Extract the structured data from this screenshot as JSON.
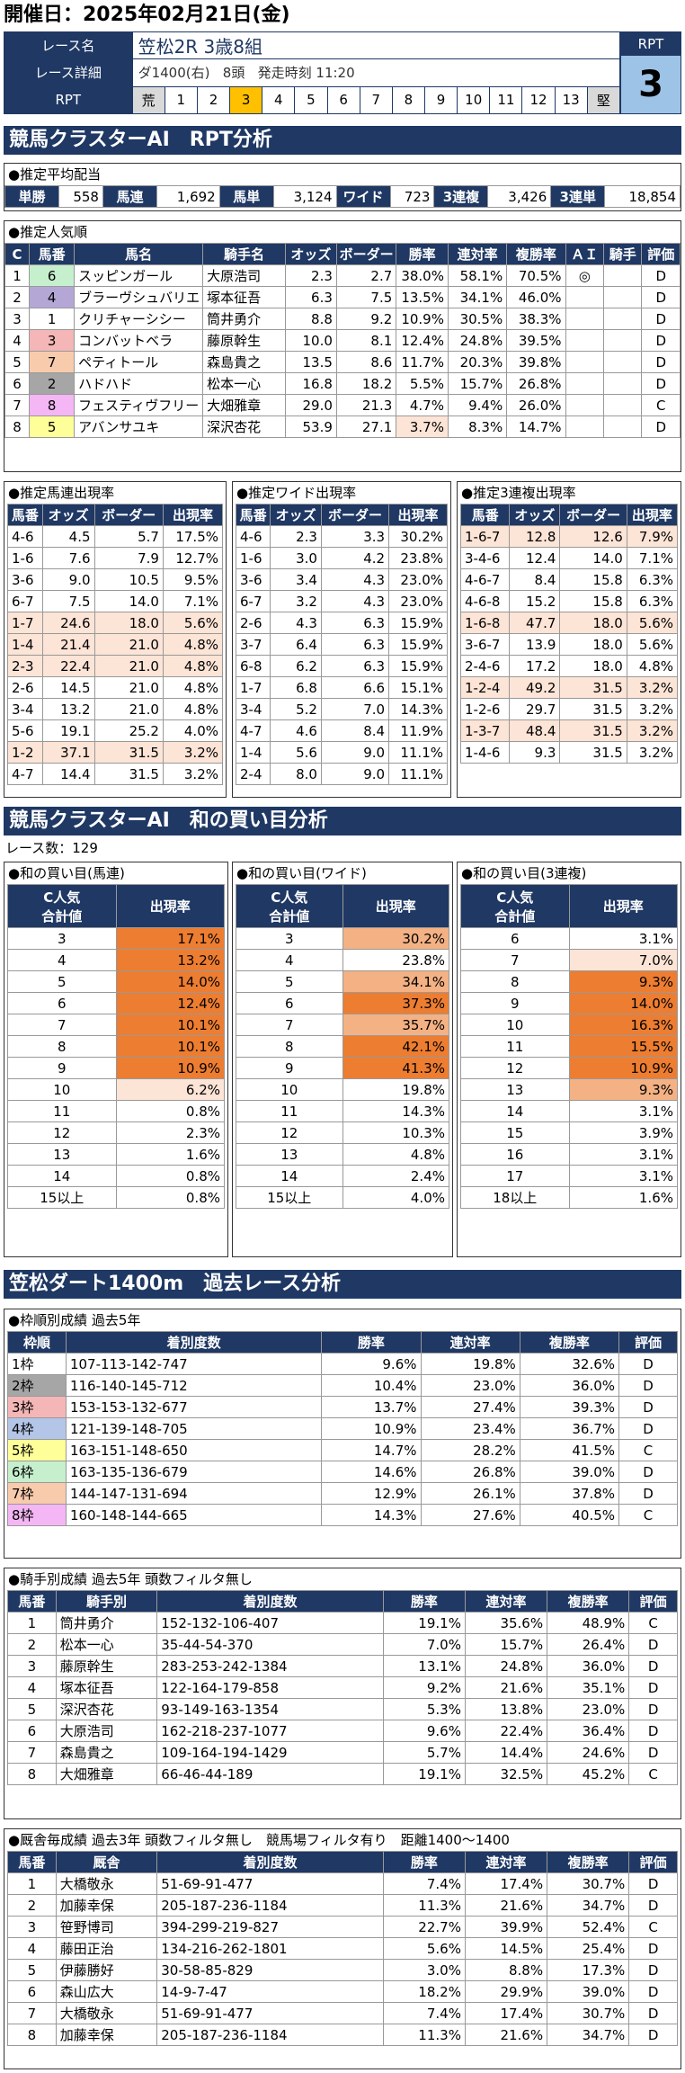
{
  "header": {
    "date_label": "開催日：2025年02月21日(金)",
    "race_label": "レース名",
    "race_name": "笠松2R 3歳8組",
    "detail_label": "レース詳細",
    "course": "ダ1400(右)",
    "heads": "8頭",
    "start": "発走時刻 11:20",
    "rpt_label": "RPT",
    "rpt_value": "3",
    "scale": [
      "荒",
      "1",
      "2",
      "3",
      "4",
      "5",
      "6",
      "7",
      "8",
      "9",
      "10",
      "11",
      "12",
      "13",
      "堅"
    ],
    "scale_active": 3
  },
  "colors": {
    "navy": "#1f3864",
    "highlight": "#f4b183",
    "orange": "#ed7d31",
    "pink": "#fce4d6"
  },
  "sec1": {
    "title": "競馬クラスターAI　RPT分析"
  },
  "payout": {
    "title": "●推定平均配当",
    "items": [
      {
        "k": "単勝",
        "v": "558"
      },
      {
        "k": "馬連",
        "v": "1,692"
      },
      {
        "k": "馬単",
        "v": "3,124"
      },
      {
        "k": "ワイド",
        "v": "723"
      },
      {
        "k": "3連複",
        "v": "3,426"
      },
      {
        "k": "3連単",
        "v": "18,854"
      }
    ]
  },
  "pop": {
    "title": "●推定人気順",
    "headers": [
      "C",
      "馬番",
      "馬名",
      "騎手名",
      "オッズ",
      "ボーダー",
      "勝率",
      "連対率",
      "複勝率",
      "ＡＩ",
      "騎手",
      "評価"
    ],
    "rows": [
      {
        "c": "1",
        "no": "6",
        "name": "スッピンガール",
        "jockey": "大原浩司",
        "odds": "2.3",
        "border": "2.7",
        "win": "38.0%",
        "ren": "58.1%",
        "fuku": "70.5%",
        "ai": "◎",
        "j": "",
        "ev": "D",
        "color": "#c6efce"
      },
      {
        "c": "2",
        "no": "4",
        "name": "ブラーヴシュバリエ",
        "jockey": "塚本征吾",
        "odds": "6.3",
        "border": "7.5",
        "win": "13.5%",
        "ren": "34.1%",
        "fuku": "46.0%",
        "ai": "",
        "j": "",
        "ev": "D",
        "color": "#b4a7d6"
      },
      {
        "c": "3",
        "no": "1",
        "name": "クリチャーシシー",
        "jockey": "筒井勇介",
        "odds": "8.8",
        "border": "9.2",
        "win": "10.9%",
        "ren": "30.5%",
        "fuku": "38.3%",
        "ai": "",
        "j": "",
        "ev": "D",
        "color": "#ffffff"
      },
      {
        "c": "4",
        "no": "3",
        "name": "コンバットベラ",
        "jockey": "藤原幹生",
        "odds": "10.0",
        "border": "8.1",
        "win": "12.4%",
        "ren": "24.8%",
        "fuku": "39.5%",
        "ai": "",
        "j": "",
        "ev": "D",
        "color": "#f4b6b6"
      },
      {
        "c": "5",
        "no": "7",
        "name": "ペティトール",
        "jockey": "森島貴之",
        "odds": "13.5",
        "border": "8.6",
        "win": "11.7%",
        "ren": "20.3%",
        "fuku": "39.8%",
        "ai": "",
        "j": "",
        "ev": "D",
        "color": "#f8cbad"
      },
      {
        "c": "6",
        "no": "2",
        "name": "ハドハド",
        "jockey": "松本一心",
        "odds": "16.8",
        "border": "18.2",
        "win": "5.5%",
        "ren": "15.7%",
        "fuku": "26.8%",
        "ai": "",
        "j": "",
        "ev": "D",
        "color": "#a6a6a6"
      },
      {
        "c": "7",
        "no": "8",
        "name": "フェスティヴフリー",
        "jockey": "大畑雅章",
        "odds": "29.0",
        "border": "21.3",
        "win": "4.7%",
        "ren": "9.4%",
        "fuku": "26.0%",
        "ai": "",
        "j": "",
        "ev": "C",
        "color": "#f4b6f4"
      },
      {
        "c": "8",
        "no": "5",
        "name": "アバンサユキ",
        "jockey": "深沢杏花",
        "odds": "53.9",
        "border": "27.1",
        "win": "3.7%",
        "ren": "8.3%",
        "fuku": "14.7%",
        "ai": "",
        "j": "",
        "ev": "D",
        "color": "#ffff99"
      }
    ]
  },
  "umaren": {
    "title": "●推定馬連出現率",
    "headers": [
      "馬番",
      "オッズ",
      "ボーダー",
      "出現率"
    ],
    "rows": [
      [
        "4-6",
        "4.5",
        "5.7",
        "17.5%",
        0
      ],
      [
        "1-6",
        "7.6",
        "7.9",
        "12.7%",
        0
      ],
      [
        "3-6",
        "9.0",
        "10.5",
        "9.5%",
        0
      ],
      [
        "6-7",
        "7.5",
        "14.0",
        "7.1%",
        0
      ],
      [
        "1-7",
        "24.6",
        "18.0",
        "5.6%",
        1
      ],
      [
        "1-4",
        "21.4",
        "21.0",
        "4.8%",
        1
      ],
      [
        "2-3",
        "22.4",
        "21.0",
        "4.8%",
        1
      ],
      [
        "2-6",
        "14.5",
        "21.0",
        "4.8%",
        0
      ],
      [
        "3-4",
        "13.2",
        "21.0",
        "4.8%",
        0
      ],
      [
        "5-6",
        "19.1",
        "25.2",
        "4.0%",
        0
      ],
      [
        "1-2",
        "37.1",
        "31.5",
        "3.2%",
        1
      ],
      [
        "4-7",
        "14.4",
        "31.5",
        "3.2%",
        0
      ]
    ]
  },
  "wide": {
    "title": "●推定ワイド出現率",
    "headers": [
      "馬番",
      "オッズ",
      "ボーダー",
      "出現率"
    ],
    "rows": [
      [
        "4-6",
        "2.3",
        "3.3",
        "30.2%",
        0
      ],
      [
        "1-6",
        "3.0",
        "4.2",
        "23.8%",
        0
      ],
      [
        "3-6",
        "3.4",
        "4.3",
        "23.0%",
        0
      ],
      [
        "6-7",
        "3.2",
        "4.3",
        "23.0%",
        0
      ],
      [
        "2-6",
        "4.3",
        "6.3",
        "15.9%",
        0
      ],
      [
        "3-7",
        "6.4",
        "6.3",
        "15.9%",
        0
      ],
      [
        "6-8",
        "6.2",
        "6.3",
        "15.9%",
        0
      ],
      [
        "1-7",
        "6.8",
        "6.6",
        "15.1%",
        0
      ],
      [
        "3-4",
        "5.2",
        "7.0",
        "14.3%",
        0
      ],
      [
        "4-7",
        "4.6",
        "8.4",
        "11.9%",
        0
      ],
      [
        "1-4",
        "5.6",
        "9.0",
        "11.1%",
        0
      ],
      [
        "2-4",
        "8.0",
        "9.0",
        "11.1%",
        0
      ]
    ]
  },
  "sanren": {
    "title": "●推定3連複出現率",
    "headers": [
      "馬番",
      "オッズ",
      "ボーダー",
      "出現率"
    ],
    "rows": [
      [
        "1-6-7",
        "12.8",
        "12.6",
        "7.9%",
        1
      ],
      [
        "3-4-6",
        "12.4",
        "14.0",
        "7.1%",
        0
      ],
      [
        "4-6-7",
        "8.4",
        "15.8",
        "6.3%",
        0
      ],
      [
        "4-6-8",
        "15.2",
        "15.8",
        "6.3%",
        0
      ],
      [
        "1-6-8",
        "47.7",
        "18.0",
        "5.6%",
        1
      ],
      [
        "3-6-7",
        "13.9",
        "18.0",
        "5.6%",
        0
      ],
      [
        "2-4-6",
        "17.2",
        "18.0",
        "4.8%",
        0
      ],
      [
        "1-2-4",
        "49.2",
        "31.5",
        "3.2%",
        1
      ],
      [
        "1-2-6",
        "29.7",
        "31.5",
        "3.2%",
        0
      ],
      [
        "1-3-7",
        "48.4",
        "31.5",
        "3.2%",
        1
      ],
      [
        "1-4-6",
        "9.3",
        "31.5",
        "3.2%",
        0
      ]
    ]
  },
  "sec2": {
    "title": "競馬クラスターAI　和の買い目分析",
    "count": "レース数：129"
  },
  "wa": [
    {
      "title": "●和の買い目(馬連)",
      "h1": "C人気\n合計値",
      "h2": "出現率",
      "rows": [
        [
          "3",
          "17.1%",
          1
        ],
        [
          "4",
          "13.2%",
          1
        ],
        [
          "5",
          "14.0%",
          1
        ],
        [
          "6",
          "12.4%",
          1
        ],
        [
          "7",
          "10.1%",
          1
        ],
        [
          "8",
          "10.1%",
          1
        ],
        [
          "9",
          "10.9%",
          1
        ],
        [
          "10",
          "6.2%",
          3
        ],
        [
          "11",
          "0.8%",
          0
        ],
        [
          "12",
          "2.3%",
          0
        ],
        [
          "13",
          "1.6%",
          0
        ],
        [
          "14",
          "0.8%",
          0
        ],
        [
          "15以上",
          "0.8%",
          0
        ]
      ]
    },
    {
      "title": "●和の買い目(ワイド)",
      "h1": "C人気\n合計値",
      "h2": "出現率",
      "rows": [
        [
          "3",
          "30.2%",
          2
        ],
        [
          "4",
          "23.8%",
          0
        ],
        [
          "5",
          "34.1%",
          2
        ],
        [
          "6",
          "37.3%",
          1
        ],
        [
          "7",
          "35.7%",
          2
        ],
        [
          "8",
          "42.1%",
          1
        ],
        [
          "9",
          "41.3%",
          1
        ],
        [
          "10",
          "19.8%",
          0
        ],
        [
          "11",
          "14.3%",
          0
        ],
        [
          "12",
          "10.3%",
          0
        ],
        [
          "13",
          "4.8%",
          0
        ],
        [
          "14",
          "2.4%",
          0
        ],
        [
          "15以上",
          "4.0%",
          0
        ]
      ]
    },
    {
      "title": "●和の買い目(3連複)",
      "h1": "C人気\n合計値",
      "h2": "出現率",
      "rows": [
        [
          "6",
          "3.1%",
          0
        ],
        [
          "7",
          "7.0%",
          3
        ],
        [
          "8",
          "9.3%",
          1
        ],
        [
          "9",
          "14.0%",
          1
        ],
        [
          "10",
          "16.3%",
          1
        ],
        [
          "11",
          "15.5%",
          1
        ],
        [
          "12",
          "10.9%",
          1
        ],
        [
          "13",
          "9.3%",
          2
        ],
        [
          "14",
          "3.1%",
          0
        ],
        [
          "15",
          "3.9%",
          0
        ],
        [
          "16",
          "3.1%",
          0
        ],
        [
          "17",
          "3.1%",
          0
        ],
        [
          "18以上",
          "1.6%",
          0
        ]
      ]
    }
  ],
  "sec3": {
    "title": "笠松ダート1400m　過去レース分析"
  },
  "waku": {
    "title": "●枠順別成績 過去5年",
    "headers": [
      "枠順",
      "着別度数",
      "勝率",
      "連対率",
      "複勝率",
      "評価"
    ],
    "rows": [
      [
        "1枠",
        "107-113-142-747",
        "9.6%",
        "19.8%",
        "32.6%",
        "D",
        "#ffffff"
      ],
      [
        "2枠",
        "116-140-145-712",
        "10.4%",
        "23.0%",
        "36.0%",
        "D",
        "#a6a6a6"
      ],
      [
        "3枠",
        "153-153-132-677",
        "13.7%",
        "27.4%",
        "39.3%",
        "D",
        "#f4b6b6"
      ],
      [
        "4枠",
        "121-139-148-705",
        "10.9%",
        "23.4%",
        "36.7%",
        "D",
        "#b4c6e7"
      ],
      [
        "5枠",
        "163-151-148-650",
        "14.7%",
        "28.2%",
        "41.5%",
        "C",
        "#ffff99"
      ],
      [
        "6枠",
        "163-135-136-679",
        "14.6%",
        "26.8%",
        "39.0%",
        "D",
        "#c6efce"
      ],
      [
        "7枠",
        "144-147-131-694",
        "12.9%",
        "26.1%",
        "37.8%",
        "D",
        "#f8cbad"
      ],
      [
        "8枠",
        "160-148-144-665",
        "14.3%",
        "27.6%",
        "40.5%",
        "C",
        "#f4b6f4"
      ]
    ]
  },
  "jockey": {
    "title": "●騎手別成績 過去5年 頭数フィルタ無し",
    "headers": [
      "馬番",
      "騎手別",
      "着別度数",
      "勝率",
      "連対率",
      "複勝率",
      "評価"
    ],
    "rows": [
      [
        "1",
        "筒井勇介",
        "152-132-106-407",
        "19.1%",
        "35.6%",
        "48.9%",
        "C"
      ],
      [
        "2",
        "松本一心",
        "35-44-54-370",
        "7.0%",
        "15.7%",
        "26.4%",
        "D"
      ],
      [
        "3",
        "藤原幹生",
        "283-253-242-1384",
        "13.1%",
        "24.8%",
        "36.0%",
        "D"
      ],
      [
        "4",
        "塚本征吾",
        "122-164-179-858",
        "9.2%",
        "21.6%",
        "35.1%",
        "D"
      ],
      [
        "5",
        "深沢杏花",
        "93-149-163-1354",
        "5.3%",
        "13.8%",
        "23.0%",
        "D"
      ],
      [
        "6",
        "大原浩司",
        "162-218-237-1077",
        "9.6%",
        "22.4%",
        "36.4%",
        "D"
      ],
      [
        "7",
        "森島貴之",
        "109-164-194-1429",
        "5.7%",
        "14.4%",
        "24.6%",
        "D"
      ],
      [
        "8",
        "大畑雅章",
        "66-46-44-189",
        "19.1%",
        "32.5%",
        "45.2%",
        "C"
      ]
    ]
  },
  "stable": {
    "title": "●厩舎毎成績 過去3年 頭数フィルタ無し　競馬場フィルタ有り　距離1400～1400",
    "headers": [
      "馬番",
      "厩舎",
      "着別度数",
      "勝率",
      "連対率",
      "複勝率",
      "評価"
    ],
    "rows": [
      [
        "1",
        "大橋敬永",
        "51-69-91-477",
        "7.4%",
        "17.4%",
        "30.7%",
        "D"
      ],
      [
        "2",
        "加藤幸保",
        "205-187-236-1184",
        "11.3%",
        "21.6%",
        "34.7%",
        "D"
      ],
      [
        "3",
        "笹野博司",
        "394-299-219-827",
        "22.7%",
        "39.9%",
        "52.4%",
        "C"
      ],
      [
        "4",
        "藤田正治",
        "134-216-262-1801",
        "5.6%",
        "14.5%",
        "25.4%",
        "D"
      ],
      [
        "5",
        "伊藤勝好",
        "30-58-85-829",
        "3.0%",
        "8.8%",
        "17.3%",
        "D"
      ],
      [
        "6",
        "森山広大",
        "14-9-7-47",
        "18.2%",
        "29.9%",
        "39.0%",
        "D"
      ],
      [
        "7",
        "大橋敬永",
        "51-69-91-477",
        "7.4%",
        "17.4%",
        "30.7%",
        "D"
      ],
      [
        "8",
        "加藤幸保",
        "205-187-236-1184",
        "11.3%",
        "21.6%",
        "34.7%",
        "D"
      ]
    ]
  }
}
